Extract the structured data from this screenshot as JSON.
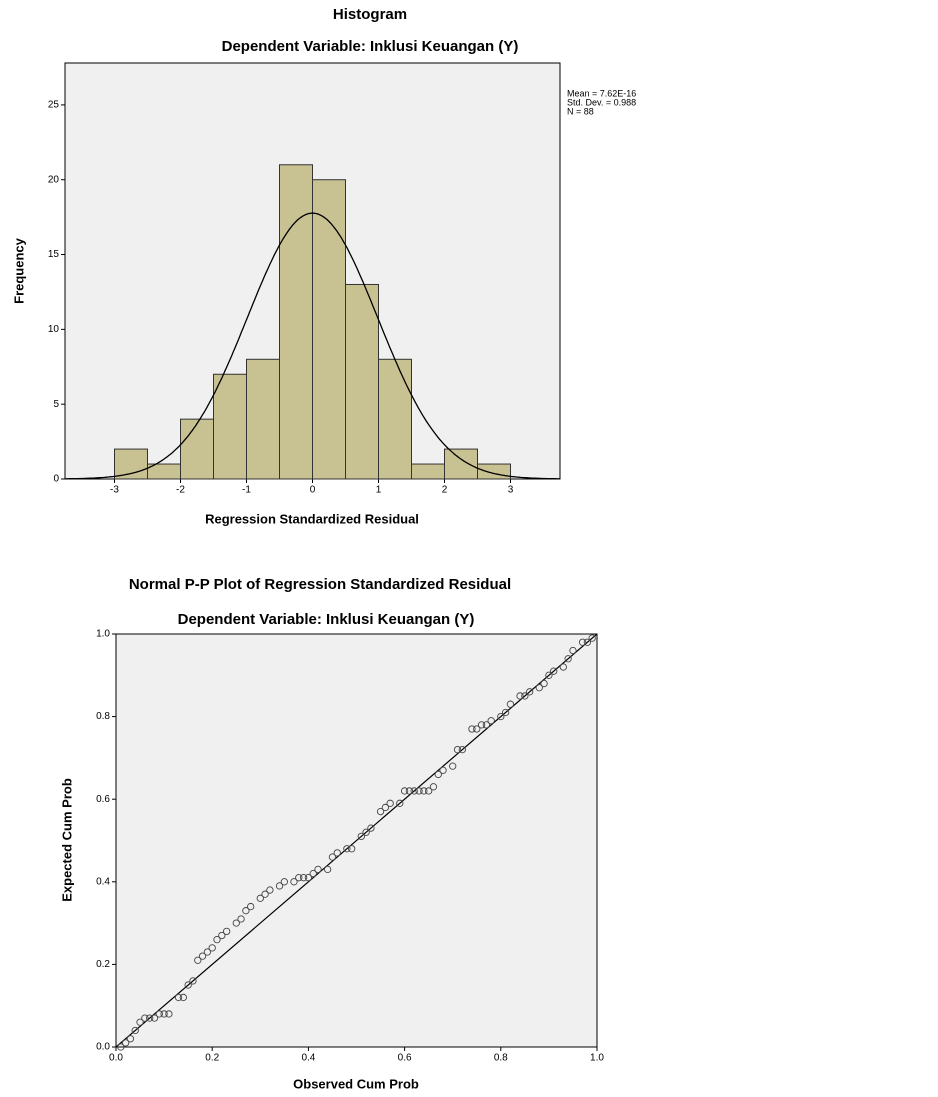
{
  "chart_data": [
    {
      "type": "histogram",
      "title": "Histogram",
      "subtitle": "Dependent Variable: Inklusi Keuangan (Y)",
      "x_label": "Regression Standardized Residual",
      "y_label": "Frequency",
      "bins": [
        -3,
        -2.5,
        -2,
        -1.5,
        -1,
        -0.5,
        0,
        0.5,
        1,
        1.5,
        2,
        2.5,
        3
      ],
      "values": [
        2,
        1,
        4,
        7,
        8,
        21,
        20,
        13,
        8,
        1,
        2,
        1
      ],
      "color": "#c8c191",
      "stats": [
        {
          "value": 7.62e-16,
          "label": "Mean = 7.62E-16"
        },
        {
          "value": 0.988,
          "label": "Std. Dev. = 0.988"
        },
        {
          "value": 88,
          "label": "N = 88"
        }
      ],
      "xlim": [
        -3.75,
        3.75
      ],
      "ylim": [
        0,
        27.8
      ],
      "xticks": [
        -3,
        -2,
        -1,
        0,
        1,
        2,
        3
      ],
      "yticks": [
        0,
        5,
        10,
        15,
        20,
        25
      ]
    },
    {
      "type": "scatter",
      "title": "Normal P-P Plot of Regression Standardized Residual",
      "subtitle": "Dependent Variable: Inklusi Keuangan (Y)",
      "x_label": "Observed Cum Prob",
      "y_label": "Expected Cum Prob",
      "x": [
        0.01,
        0.02,
        0.03,
        0.04,
        0.05,
        0.06,
        0.07,
        0.08,
        0.09,
        0.1,
        0.11,
        0.13,
        0.14,
        0.15,
        0.16,
        0.17,
        0.18,
        0.19,
        0.2,
        0.21,
        0.22,
        0.23,
        0.25,
        0.26,
        0.27,
        0.28,
        0.3,
        0.31,
        0.32,
        0.34,
        0.35,
        0.37,
        0.38,
        0.39,
        0.4,
        0.41,
        0.42,
        0.44,
        0.45,
        0.46,
        0.48,
        0.49,
        0.51,
        0.52,
        0.53,
        0.55,
        0.56,
        0.57,
        0.59,
        0.6,
        0.61,
        0.62,
        0.63,
        0.64,
        0.65,
        0.66,
        0.67,
        0.68,
        0.7,
        0.71,
        0.72,
        0.74,
        0.75,
        0.76,
        0.77,
        0.78,
        0.8,
        0.81,
        0.82,
        0.84,
        0.85,
        0.86,
        0.88,
        0.89,
        0.9,
        0.91,
        0.93,
        0.94,
        0.95,
        0.97,
        0.98,
        0.99
      ],
      "y": [
        0.0,
        0.01,
        0.02,
        0.04,
        0.06,
        0.07,
        0.07,
        0.07,
        0.08,
        0.08,
        0.08,
        0.12,
        0.12,
        0.15,
        0.16,
        0.21,
        0.22,
        0.23,
        0.24,
        0.26,
        0.27,
        0.28,
        0.3,
        0.31,
        0.33,
        0.34,
        0.36,
        0.37,
        0.38,
        0.39,
        0.4,
        0.4,
        0.41,
        0.41,
        0.41,
        0.42,
        0.43,
        0.43,
        0.46,
        0.47,
        0.48,
        0.48,
        0.51,
        0.52,
        0.53,
        0.57,
        0.58,
        0.59,
        0.59,
        0.62,
        0.62,
        0.62,
        0.62,
        0.62,
        0.62,
        0.63,
        0.66,
        0.67,
        0.68,
        0.72,
        0.72,
        0.77,
        0.77,
        0.78,
        0.78,
        0.79,
        0.8,
        0.81,
        0.83,
        0.85,
        0.85,
        0.86,
        0.87,
        0.88,
        0.9,
        0.91,
        0.92,
        0.94,
        0.96,
        0.98,
        0.98,
        0.99
      ],
      "xlim": [
        0,
        1
      ],
      "ylim": [
        0,
        1
      ],
      "xticks": [
        {
          "value": 0,
          "label": "0.0"
        },
        0.2,
        0.4,
        0.6,
        0.8,
        {
          "value": 1,
          "label": "1.0"
        }
      ],
      "yticks": [
        {
          "value": 0,
          "label": "0.0"
        },
        0.2,
        0.4,
        0.6,
        0.8,
        {
          "value": 1,
          "label": "1.0"
        }
      ]
    }
  ]
}
